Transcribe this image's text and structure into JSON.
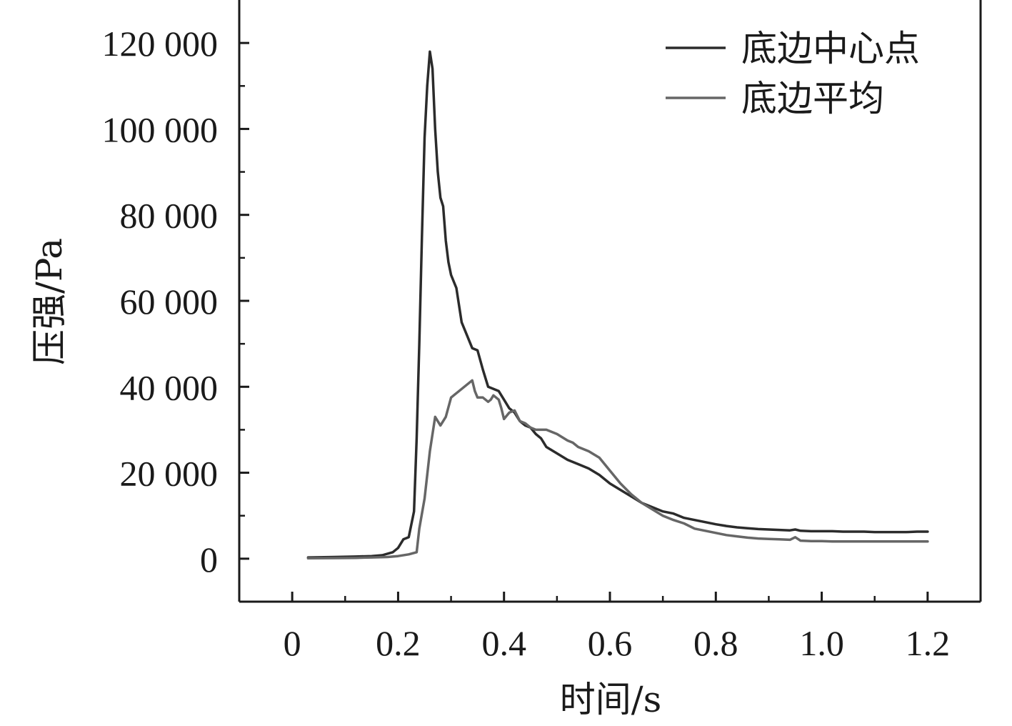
{
  "chart_data": {
    "type": "line",
    "xlabel": "时间/s",
    "ylabel": "压强/Pa",
    "xlim": [
      -0.1,
      1.3
    ],
    "ylim": [
      -10000,
      130000
    ],
    "x_ticks": [
      0,
      0.2,
      0.4,
      0.6,
      0.8,
      1.0,
      1.2
    ],
    "x_tick_labels": [
      "0",
      "0.2",
      "0.4",
      "0.6",
      "0.8",
      "1.0",
      "1.2"
    ],
    "y_ticks": [
      0,
      20000,
      40000,
      60000,
      80000,
      100000,
      120000
    ],
    "y_tick_labels": [
      "0",
      "20 000",
      "40 000",
      "60 000",
      "80 000",
      "100 000",
      "120 000"
    ],
    "grid": false,
    "legend_position": "top-right",
    "series": [
      {
        "name": "底边中心点",
        "color": "#2b2b2b",
        "x": [
          0.03,
          0.08,
          0.12,
          0.15,
          0.17,
          0.19,
          0.2,
          0.21,
          0.22,
          0.23,
          0.235,
          0.24,
          0.245,
          0.25,
          0.255,
          0.26,
          0.265,
          0.27,
          0.275,
          0.28,
          0.285,
          0.29,
          0.295,
          0.3,
          0.31,
          0.32,
          0.33,
          0.34,
          0.35,
          0.36,
          0.37,
          0.38,
          0.39,
          0.4,
          0.41,
          0.42,
          0.43,
          0.44,
          0.45,
          0.46,
          0.47,
          0.48,
          0.5,
          0.52,
          0.54,
          0.56,
          0.58,
          0.6,
          0.62,
          0.64,
          0.66,
          0.68,
          0.7,
          0.72,
          0.74,
          0.76,
          0.78,
          0.8,
          0.82,
          0.84,
          0.86,
          0.88,
          0.9,
          0.92,
          0.94,
          0.95,
          0.96,
          0.98,
          1.0,
          1.02,
          1.04,
          1.06,
          1.08,
          1.1,
          1.12,
          1.14,
          1.16,
          1.18,
          1.2
        ],
        "y": [
          300,
          400,
          500,
          600,
          800,
          1500,
          2500,
          4500,
          5000,
          11000,
          28000,
          50000,
          75000,
          98000,
          110000,
          118000,
          114000,
          100000,
          90000,
          84000,
          82000,
          74000,
          69000,
          66000,
          63000,
          55000,
          52000,
          49000,
          48500,
          44000,
          40000,
          39500,
          39000,
          37000,
          35000,
          34000,
          32000,
          31000,
          30500,
          29000,
          28000,
          26000,
          24500,
          23000,
          22000,
          21000,
          19500,
          17500,
          16000,
          14500,
          13000,
          12000,
          11000,
          10500,
          9500,
          9000,
          8500,
          8000,
          7600,
          7300,
          7100,
          6900,
          6800,
          6700,
          6600,
          6800,
          6500,
          6400,
          6400,
          6400,
          6300,
          6300,
          6300,
          6200,
          6200,
          6200,
          6200,
          6300,
          6300
        ],
        "values_note": ""
      },
      {
        "name": "底边平均",
        "color": "#666666",
        "x": [
          0.03,
          0.08,
          0.12,
          0.15,
          0.18,
          0.2,
          0.22,
          0.235,
          0.24,
          0.25,
          0.26,
          0.27,
          0.28,
          0.29,
          0.3,
          0.31,
          0.32,
          0.33,
          0.34,
          0.345,
          0.35,
          0.36,
          0.37,
          0.375,
          0.38,
          0.39,
          0.395,
          0.4,
          0.41,
          0.42,
          0.43,
          0.44,
          0.45,
          0.46,
          0.47,
          0.48,
          0.5,
          0.52,
          0.53,
          0.54,
          0.56,
          0.58,
          0.6,
          0.62,
          0.64,
          0.66,
          0.68,
          0.7,
          0.72,
          0.74,
          0.76,
          0.78,
          0.8,
          0.82,
          0.84,
          0.86,
          0.88,
          0.9,
          0.92,
          0.94,
          0.95,
          0.96,
          0.98,
          1.0,
          1.02,
          1.04,
          1.06,
          1.08,
          1.1,
          1.12,
          1.14,
          1.16,
          1.18,
          1.2
        ],
        "y": [
          100,
          150,
          200,
          300,
          400,
          600,
          1000,
          1500,
          7000,
          14000,
          25000,
          33000,
          31000,
          33000,
          37500,
          38500,
          39500,
          40500,
          41500,
          39000,
          37500,
          37500,
          36500,
          37000,
          38000,
          37000,
          35000,
          32500,
          34000,
          34500,
          32000,
          31500,
          30500,
          30000,
          30000,
          30000,
          29000,
          27500,
          27000,
          26000,
          25000,
          23500,
          20500,
          17500,
          15000,
          13000,
          11500,
          10000,
          9000,
          8200,
          7000,
          6500,
          6000,
          5500,
          5200,
          4900,
          4700,
          4600,
          4500,
          4400,
          5000,
          4200,
          4100,
          4100,
          4000,
          4000,
          4000,
          4000,
          4000,
          4000,
          4000,
          4000,
          4000,
          4000
        ]
      }
    ]
  }
}
